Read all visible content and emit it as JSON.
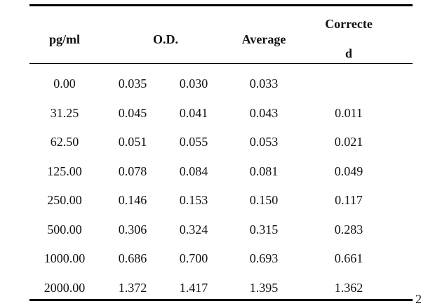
{
  "table": {
    "headers": {
      "concentration": "pg/ml",
      "od": "O.D.",
      "average": "Average",
      "corrected_line1": "Correcte",
      "corrected_line2": "d"
    },
    "rows": [
      {
        "conc": "0.00",
        "od1": "0.035",
        "od2": "0.030",
        "avg": "0.033",
        "corr": ""
      },
      {
        "conc": "31.25",
        "od1": "0.045",
        "od2": "0.041",
        "avg": "0.043",
        "corr": "0.011"
      },
      {
        "conc": "62.50",
        "od1": "0.051",
        "od2": "0.055",
        "avg": "0.053",
        "corr": "0.021"
      },
      {
        "conc": "125.00",
        "od1": "0.078",
        "od2": "0.084",
        "avg": "0.081",
        "corr": "0.049"
      },
      {
        "conc": "250.00",
        "od1": "0.146",
        "od2": "0.153",
        "avg": "0.150",
        "corr": "0.117"
      },
      {
        "conc": "500.00",
        "od1": "0.306",
        "od2": "0.324",
        "avg": "0.315",
        "corr": "0.283"
      },
      {
        "conc": "1000.00",
        "od1": "0.686",
        "od2": "0.700",
        "avg": "0.693",
        "corr": "0.661"
      },
      {
        "conc": "2000.00",
        "od1": "1.372",
        "od2": "1.417",
        "avg": "1.395",
        "corr": "1.362"
      }
    ]
  },
  "page_fragment": "2"
}
